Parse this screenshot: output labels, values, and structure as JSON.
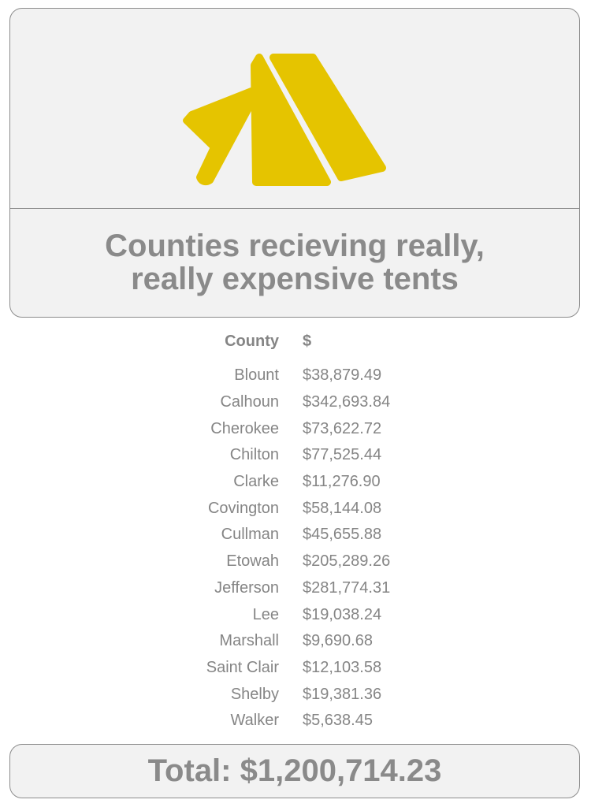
{
  "header": {
    "icon": "tent-icon",
    "title_line1": "Counties recieving really,",
    "title_line2": "really expensive tents"
  },
  "colors": {
    "icon": "#e5c400",
    "text": "#8a8a8a",
    "card_background": "#f2f2f2",
    "border": "#8c8c8c"
  },
  "chart_data": {
    "type": "table",
    "columns": [
      "County",
      "$"
    ],
    "rows": [
      [
        "Blount",
        "$38,879.49"
      ],
      [
        "Calhoun",
        "$342,693.84"
      ],
      [
        "Cherokee",
        "$73,622.72"
      ],
      [
        "Chilton",
        "$77,525.44"
      ],
      [
        "Clarke",
        "$11,276.90"
      ],
      [
        "Covington",
        "$58,144.08"
      ],
      [
        "Cullman",
        "$45,655.88"
      ],
      [
        "Etowah",
        "$205,289.26"
      ],
      [
        "Jefferson",
        "$281,774.31"
      ],
      [
        "Lee",
        "$19,038.24"
      ],
      [
        "Marshall",
        "$9,690.68"
      ],
      [
        "Saint Clair",
        "$12,103.58"
      ],
      [
        "Shelby",
        "$19,381.36"
      ],
      [
        "Walker",
        "$5,638.45"
      ]
    ]
  },
  "footer": {
    "total_label": "Total: $1,200,714.23"
  }
}
